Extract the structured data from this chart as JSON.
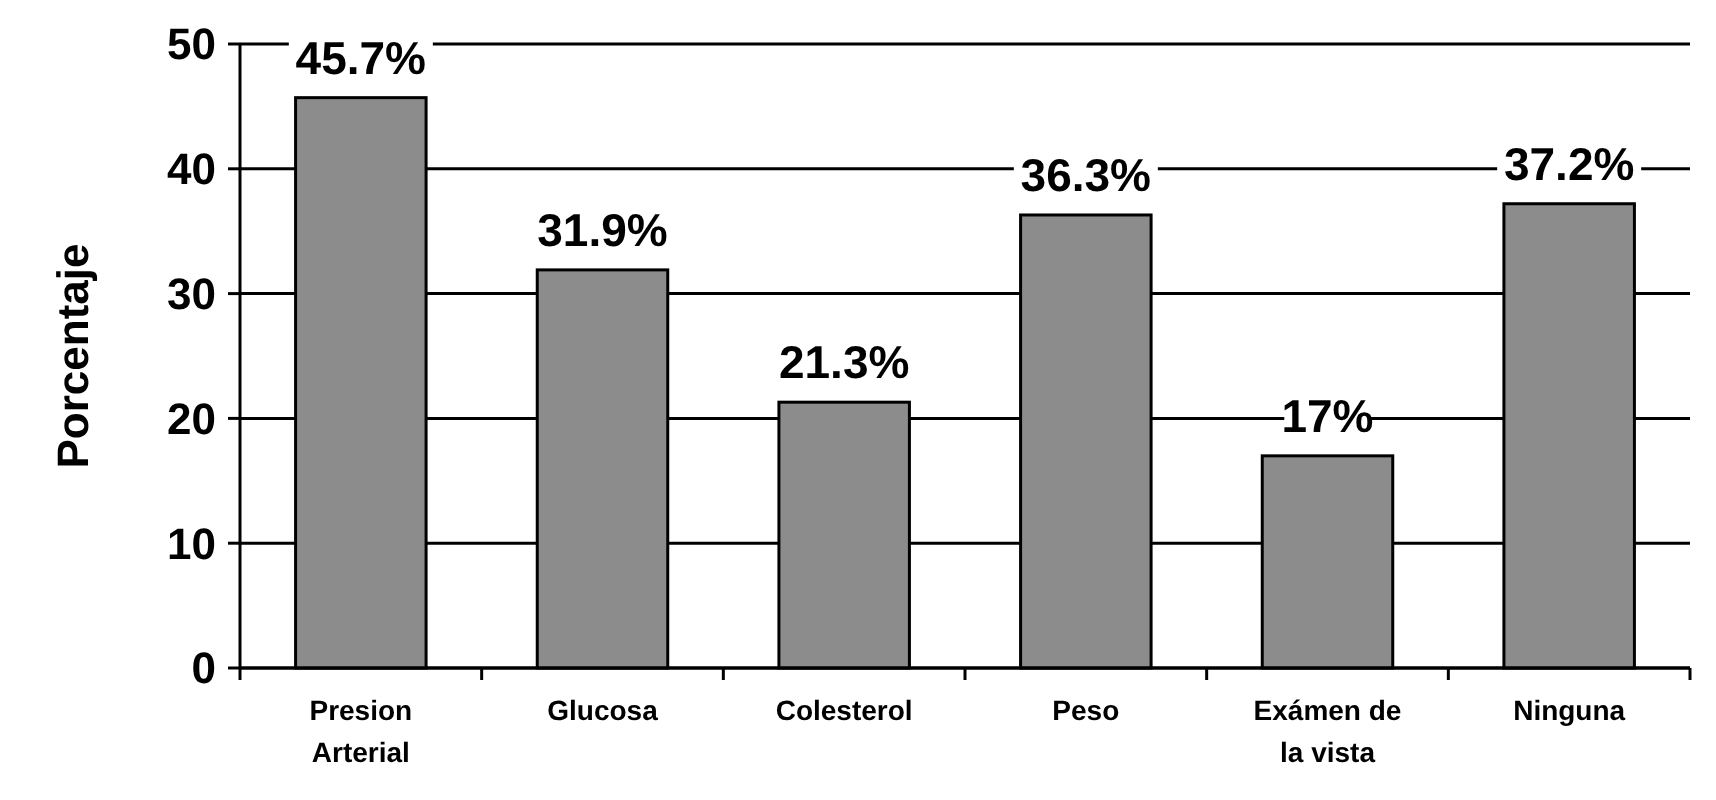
{
  "chart_data": {
    "type": "bar",
    "ylabel": "Porcentaje",
    "categories": [
      "Presion Arterial",
      "Glucosa",
      "Colesterol",
      "Peso",
      "Exámen de la vista",
      "Ninguna"
    ],
    "values": [
      45.7,
      31.9,
      21.3,
      36.3,
      17,
      37.2
    ],
    "value_labels": [
      "45.7%",
      "31.9%",
      "21.3%",
      "36.3%",
      "17%",
      "37.2%"
    ],
    "color": "#8c8c8c",
    "ylim": [
      0,
      50
    ],
    "yticks": [
      0,
      10,
      20,
      30,
      40,
      50
    ],
    "grid": "y"
  }
}
